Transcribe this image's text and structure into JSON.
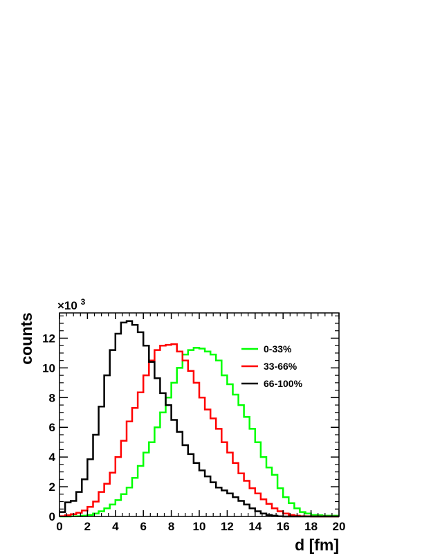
{
  "chart_data": {
    "type": "line",
    "step": true,
    "xlabel": "d [fm]",
    "ylabel": "counts",
    "y_multiplier_label": "×10",
    "y_multiplier_exponent": "3",
    "xlim": [
      0,
      20
    ],
    "ylim": [
      0,
      13.7
    ],
    "xticks": [
      0,
      2,
      4,
      6,
      8,
      10,
      12,
      14,
      16,
      18,
      20
    ],
    "yticks": [
      0,
      2,
      4,
      6,
      8,
      10,
      12
    ],
    "bin_width": 0.4,
    "legend_position": "top-right",
    "series": [
      {
        "name": "0-33%",
        "color": "#00ff00",
        "values": [
          0,
          0,
          0.01,
          0.02,
          0.05,
          0.1,
          0.2,
          0.35,
          0.55,
          0.8,
          1.1,
          1.5,
          1.95,
          2.6,
          3.4,
          4.3,
          5.0,
          6.0,
          7.0,
          8.0,
          9.0,
          10.0,
          10.9,
          11.2,
          11.35,
          11.3,
          11.1,
          10.9,
          10.5,
          9.5,
          8.9,
          8.2,
          7.5,
          6.7,
          5.9,
          5.0,
          4.0,
          3.3,
          2.8,
          1.9,
          1.3,
          0.9,
          0.55,
          0.3,
          0.2,
          0.1,
          0.08,
          0.05,
          0.05,
          0.05
        ]
      },
      {
        "name": "33-66%",
        "color": "#ff0000",
        "values": [
          0.02,
          0.08,
          0.15,
          0.25,
          0.4,
          0.65,
          1.0,
          1.65,
          2.2,
          2.95,
          4.0,
          5.1,
          6.4,
          7.3,
          8.35,
          9.5,
          10.5,
          11.2,
          11.5,
          11.55,
          11.6,
          11.1,
          10.5,
          9.8,
          9.0,
          8.0,
          7.2,
          6.6,
          5.9,
          5.0,
          4.3,
          3.6,
          2.9,
          2.4,
          1.9,
          1.55,
          1.15,
          0.85,
          0.55,
          0.35,
          0.2,
          0.1,
          0.05,
          0.02,
          0.01,
          0,
          0,
          0,
          0,
          0
        ]
      },
      {
        "name": "66-100%",
        "color": "#000000",
        "values": [
          0.3,
          0.95,
          1.05,
          1.65,
          2.5,
          3.85,
          5.5,
          7.4,
          9.5,
          11.2,
          12.3,
          13.05,
          13.15,
          12.9,
          12.4,
          11.5,
          10.4,
          9.3,
          8.3,
          7.5,
          6.5,
          5.7,
          4.8,
          4.2,
          3.6,
          3.1,
          2.7,
          2.3,
          1.95,
          1.75,
          1.55,
          1.3,
          1.05,
          0.8,
          0.55,
          0.35,
          0.2,
          0.1,
          0.05,
          0.01,
          0,
          0,
          0,
          0,
          0,
          0,
          0,
          0,
          0,
          0
        ]
      }
    ]
  }
}
